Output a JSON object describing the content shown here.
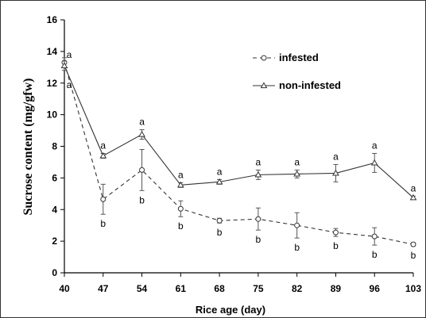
{
  "chart_data": {
    "type": "line",
    "xlabel": "Rice age (day)",
    "ylabel": "Sucrose content (mg/gfw)",
    "x": [
      40,
      47,
      54,
      61,
      68,
      75,
      82,
      89,
      96,
      103
    ],
    "ylim": [
      0,
      16
    ],
    "yticks": [
      0,
      2,
      4,
      6,
      8,
      10,
      12,
      14,
      16
    ],
    "legend_position": "top-right",
    "series": [
      {
        "name": "infested",
        "marker": "circle",
        "line": "dashed",
        "values": [
          13.3,
          4.65,
          6.5,
          4.05,
          3.3,
          3.4,
          3.0,
          2.55,
          2.3,
          1.8
        ],
        "errors": [
          0.3,
          0.95,
          1.3,
          0.5,
          0.15,
          0.7,
          0.8,
          0.25,
          0.55,
          0.1
        ],
        "labels": [
          "a",
          "b",
          "b",
          "b",
          "b",
          "b",
          "b",
          "b",
          "b",
          "b"
        ]
      },
      {
        "name": "non-infested",
        "marker": "triangle",
        "line": "solid",
        "values": [
          13.1,
          7.4,
          8.75,
          5.55,
          5.75,
          6.2,
          6.25,
          6.3,
          6.95,
          4.75
        ],
        "errors": [
          0.3,
          0.15,
          0.3,
          0.15,
          0.15,
          0.3,
          0.25,
          0.55,
          0.6,
          0.1
        ],
        "labels": [
          "a",
          "a",
          "a",
          "a",
          "a",
          "a",
          "a",
          "a",
          "a",
          "a"
        ]
      }
    ]
  }
}
